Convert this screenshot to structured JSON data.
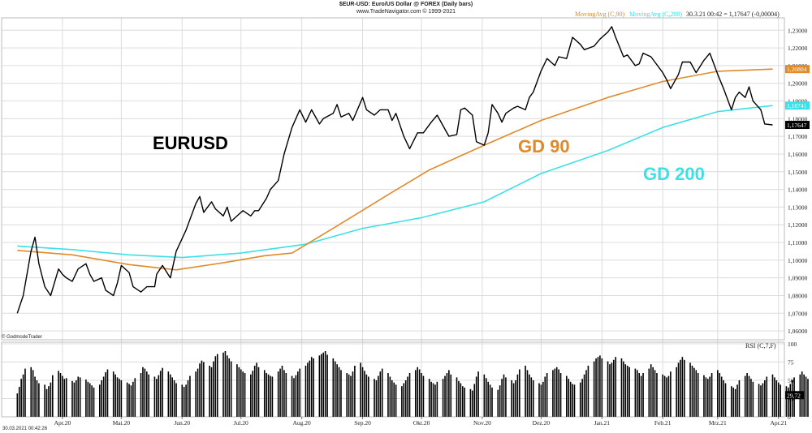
{
  "header": {
    "title": "$EUR-USD: Euro/US Dollar @ FOREX (Daily bars)",
    "copyright": "www.TradeNavigator.com © 1999-2021",
    "ma90_label": "MovingAvg (C,90)",
    "ma200_label": "MovingAvg (C,200)",
    "readout": "30.3.21 00:42 = 1,17647 (-0,00004)"
  },
  "annotations": {
    "eurusd": "EURUSD",
    "gd90": "GD 90",
    "gd200": "GD 200",
    "source": "© GodmodeTrader",
    "timestamp": "30.03.2021 00:42:26",
    "rsi_label": "RSI (C,7,F)"
  },
  "colors": {
    "price": "#000000",
    "ma90": "#e08a2a",
    "ma200": "#3de0e6",
    "grid": "#dcdcdc",
    "rsi_bars": "#000000"
  },
  "chart_data": [
    {
      "type": "line",
      "title": "$EUR-USD: Euro/US Dollar @ FOREX (Daily bars)",
      "ylim": [
        1.055,
        1.237
      ],
      "x_ticks": [
        "Apr.20",
        "Mai.20",
        "Jun.20",
        "Jul.20",
        "Aug.20",
        "Sep.20",
        "Okt.20",
        "Nov.20",
        "Dez.20",
        "Jan.21",
        "Feb.21",
        "Mrz.21",
        "Apr.21"
      ],
      "y_ticks": [
        "1,23000",
        "1,22000",
        "1,21000",
        "1,20000",
        "1,19000",
        "1,18000",
        "1,17000",
        "1,16000",
        "1,15000",
        "1,14000",
        "1,13000",
        "1,12000",
        "1,11000",
        "1,10000",
        "1,09000",
        "1,08000",
        "1,07000",
        "1,06000"
      ],
      "last_labels": {
        "ma90": "1,20804",
        "ma200": "1,18741",
        "price": "1,17647"
      },
      "series": [
        {
          "name": "EURUSD",
          "key": "price",
          "points": [
            [
              "2020-03-09",
              1.07
            ],
            [
              "2020-03-12",
              1.08
            ],
            [
              "2020-03-16",
              1.105
            ],
            [
              "2020-03-18",
              1.113
            ],
            [
              "2020-03-20",
              1.098
            ],
            [
              "2020-03-23",
              1.085
            ],
            [
              "2020-03-26",
              1.08
            ],
            [
              "2020-03-30",
              1.095
            ],
            [
              "2020-04-01",
              1.092
            ],
            [
              "2020-04-03",
              1.09
            ],
            [
              "2020-04-06",
              1.088
            ],
            [
              "2020-04-09",
              1.095
            ],
            [
              "2020-04-13",
              1.098
            ],
            [
              "2020-04-15",
              1.092
            ],
            [
              "2020-04-17",
              1.088
            ],
            [
              "2020-04-21",
              1.09
            ],
            [
              "2020-04-23",
              1.083
            ],
            [
              "2020-04-27",
              1.08
            ],
            [
              "2020-04-29",
              1.087
            ],
            [
              "2020-05-01",
              1.097
            ],
            [
              "2020-05-05",
              1.093
            ],
            [
              "2020-05-07",
              1.085
            ],
            [
              "2020-05-11",
              1.082
            ],
            [
              "2020-05-14",
              1.085
            ],
            [
              "2020-05-18",
              1.085
            ],
            [
              "2020-05-19",
              1.092
            ],
            [
              "2020-05-22",
              1.097
            ],
            [
              "2020-05-26",
              1.09
            ],
            [
              "2020-05-29",
              1.105
            ],
            [
              "2020-06-03",
              1.117
            ],
            [
              "2020-06-08",
              1.132
            ],
            [
              "2020-06-10",
              1.136
            ],
            [
              "2020-06-12",
              1.127
            ],
            [
              "2020-06-16",
              1.133
            ],
            [
              "2020-06-18",
              1.129
            ],
            [
              "2020-06-22",
              1.125
            ],
            [
              "2020-06-24",
              1.13
            ],
            [
              "2020-06-26",
              1.122
            ],
            [
              "2020-06-30",
              1.126
            ],
            [
              "2020-07-02",
              1.128
            ],
            [
              "2020-07-06",
              1.125
            ],
            [
              "2020-07-08",
              1.128
            ],
            [
              "2020-07-10",
              1.128
            ],
            [
              "2020-07-14",
              1.135
            ],
            [
              "2020-07-16",
              1.14
            ],
            [
              "2020-07-20",
              1.145
            ],
            [
              "2020-07-23",
              1.16
            ],
            [
              "2020-07-27",
              1.175
            ],
            [
              "2020-07-31",
              1.185
            ],
            [
              "2020-08-03",
              1.178
            ],
            [
              "2020-08-06",
              1.185
            ],
            [
              "2020-08-10",
              1.177
            ],
            [
              "2020-08-12",
              1.18
            ],
            [
              "2020-08-17",
              1.183
            ],
            [
              "2020-08-19",
              1.188
            ],
            [
              "2020-08-21",
              1.181
            ],
            [
              "2020-08-25",
              1.183
            ],
            [
              "2020-08-27",
              1.179
            ],
            [
              "2020-09-01",
              1.192
            ],
            [
              "2020-09-03",
              1.185
            ],
            [
              "2020-09-07",
              1.182
            ],
            [
              "2020-09-10",
              1.185
            ],
            [
              "2020-09-14",
              1.185
            ],
            [
              "2020-09-16",
              1.179
            ],
            [
              "2020-09-18",
              1.183
            ],
            [
              "2020-09-22",
              1.17
            ],
            [
              "2020-09-25",
              1.163
            ],
            [
              "2020-09-29",
              1.172
            ],
            [
              "2020-10-02",
              1.172
            ],
            [
              "2020-10-06",
              1.178
            ],
            [
              "2020-10-09",
              1.182
            ],
            [
              "2020-10-13",
              1.174
            ],
            [
              "2020-10-15",
              1.17
            ],
            [
              "2020-10-19",
              1.171
            ],
            [
              "2020-10-21",
              1.185
            ],
            [
              "2020-10-23",
              1.186
            ],
            [
              "2020-10-27",
              1.182
            ],
            [
              "2020-10-29",
              1.167
            ],
            [
              "2020-11-02",
              1.165
            ],
            [
              "2020-11-04",
              1.172
            ],
            [
              "2020-11-06",
              1.188
            ],
            [
              "2020-11-09",
              1.183
            ],
            [
              "2020-11-11",
              1.178
            ],
            [
              "2020-11-13",
              1.183
            ],
            [
              "2020-11-17",
              1.186
            ],
            [
              "2020-11-19",
              1.187
            ],
            [
              "2020-11-23",
              1.185
            ],
            [
              "2020-11-25",
              1.192
            ],
            [
              "2020-11-27",
              1.195
            ],
            [
              "2020-12-01",
              1.207
            ],
            [
              "2020-12-04",
              1.214
            ],
            [
              "2020-12-08",
              1.21
            ],
            [
              "2020-12-10",
              1.215
            ],
            [
              "2020-12-14",
              1.214
            ],
            [
              "2020-12-17",
              1.226
            ],
            [
              "2020-12-21",
              1.222
            ],
            [
              "2020-12-23",
              1.219
            ],
            [
              "2020-12-28",
              1.221
            ],
            [
              "2020-12-31",
              1.225
            ],
            [
              "2021-01-04",
              1.229
            ],
            [
              "2021-01-06",
              1.232
            ],
            [
              "2021-01-08",
              1.226
            ],
            [
              "2021-01-12",
              1.215
            ],
            [
              "2021-01-14",
              1.216
            ],
            [
              "2021-01-18",
              1.21
            ],
            [
              "2021-01-20",
              1.211
            ],
            [
              "2021-01-22",
              1.217
            ],
            [
              "2021-01-26",
              1.215
            ],
            [
              "2021-01-28",
              1.212
            ],
            [
              "2021-02-01",
              1.206
            ],
            [
              "2021-02-03",
              1.202
            ],
            [
              "2021-02-05",
              1.197
            ],
            [
              "2021-02-09",
              1.205
            ],
            [
              "2021-02-11",
              1.212
            ],
            [
              "2021-02-15",
              1.212
            ],
            [
              "2021-02-18",
              1.206
            ],
            [
              "2021-02-22",
              1.213
            ],
            [
              "2021-02-25",
              1.217
            ],
            [
              "2021-03-01",
              1.205
            ],
            [
              "2021-03-04",
              1.197
            ],
            [
              "2021-03-08",
              1.185
            ],
            [
              "2021-03-10",
              1.192
            ],
            [
              "2021-03-12",
              1.195
            ],
            [
              "2021-03-15",
              1.192
            ],
            [
              "2021-03-17",
              1.198
            ],
            [
              "2021-03-19",
              1.19
            ],
            [
              "2021-03-23",
              1.185
            ],
            [
              "2021-03-25",
              1.177
            ],
            [
              "2021-03-29",
              1.17647
            ]
          ]
        },
        {
          "name": "GD 90",
          "key": "ma90",
          "points": [
            [
              "2020-03-09",
              1.1055
            ],
            [
              "2020-04-06",
              1.103
            ],
            [
              "2020-05-05",
              1.0975
            ],
            [
              "2020-05-29",
              1.0945
            ],
            [
              "2020-06-22",
              1.0985
            ],
            [
              "2020-07-13",
              1.1025
            ],
            [
              "2020-07-27",
              1.104
            ],
            [
              "2020-08-17",
              1.118
            ],
            [
              "2020-09-14",
              1.137
            ],
            [
              "2020-10-05",
              1.151
            ],
            [
              "2020-11-02",
              1.165
            ],
            [
              "2020-12-01",
              1.179
            ],
            [
              "2021-01-04",
              1.192
            ],
            [
              "2021-02-01",
              1.201
            ],
            [
              "2021-03-01",
              1.2068
            ],
            [
              "2021-03-29",
              1.20804
            ]
          ]
        },
        {
          "name": "GD 200",
          "key": "ma200",
          "points": [
            [
              "2020-03-09",
              1.108
            ],
            [
              "2020-04-06",
              1.106
            ],
            [
              "2020-05-05",
              1.103
            ],
            [
              "2020-06-01",
              1.1015
            ],
            [
              "2020-07-01",
              1.104
            ],
            [
              "2020-08-03",
              1.109
            ],
            [
              "2020-09-01",
              1.118
            ],
            [
              "2020-10-01",
              1.124
            ],
            [
              "2020-11-02",
              1.133
            ],
            [
              "2020-12-01",
              1.149
            ],
            [
              "2021-01-04",
              1.162
            ],
            [
              "2021-02-01",
              1.175
            ],
            [
              "2021-03-01",
              1.184
            ],
            [
              "2021-03-29",
              1.18741
            ]
          ]
        }
      ]
    },
    {
      "type": "bar",
      "title": "RSI (C,7,F)",
      "ylim": [
        0,
        100
      ],
      "y_ticks": [
        "100",
        "75",
        "50",
        "25",
        "0"
      ],
      "last_label": "29,72",
      "series": [
        {
          "name": "RSI (C,7,F)",
          "start": "2020-03-09",
          "values": [
            32,
            41,
            52,
            58,
            66,
            68,
            64,
            55,
            50,
            46,
            44,
            38,
            42,
            47,
            57,
            63,
            60,
            56,
            52,
            53,
            49,
            47,
            50,
            55,
            54,
            51,
            48,
            46,
            43,
            40,
            44,
            50,
            55,
            61,
            65,
            62,
            58,
            54,
            52,
            50,
            47,
            45,
            43,
            48,
            53,
            60,
            68,
            66,
            62,
            58,
            55,
            52,
            57,
            63,
            67,
            62,
            58,
            54,
            50,
            46,
            44,
            41,
            44,
            50,
            56,
            62,
            66,
            73,
            77,
            75,
            70,
            68,
            76,
            83,
            86,
            88,
            90,
            84,
            80,
            76,
            72,
            68,
            65,
            62,
            60,
            58,
            63,
            70,
            74,
            68,
            64,
            60,
            58,
            56,
            55,
            62,
            66,
            70,
            64,
            60,
            56,
            53,
            57,
            62,
            66,
            70,
            74,
            77,
            82,
            80,
            84,
            86,
            88,
            90,
            85,
            80,
            76,
            72,
            68,
            64,
            60,
            58,
            56,
            62,
            70,
            74,
            68,
            63,
            58,
            55,
            52,
            50,
            56,
            62,
            66,
            60,
            55,
            50,
            47,
            44,
            42,
            46,
            50,
            55,
            60,
            64,
            68,
            65,
            60,
            56,
            52,
            48,
            46,
            44,
            48,
            52,
            56,
            60,
            64,
            58,
            54,
            49,
            46,
            42,
            40,
            38,
            36,
            45,
            55,
            62,
            58,
            53,
            48,
            44,
            40,
            37,
            43,
            52,
            58,
            54,
            50,
            46,
            50,
            58,
            65,
            70,
            64,
            58,
            54,
            50,
            46,
            44,
            48,
            55,
            60,
            64,
            66,
            68,
            65,
            60,
            56,
            52,
            48,
            45,
            44,
            47,
            52,
            58,
            64,
            70,
            76,
            80,
            82,
            84,
            80,
            76,
            72,
            74,
            78,
            82,
            80,
            76,
            72,
            70,
            68,
            66,
            64,
            60,
            56,
            60,
            66,
            72,
            68,
            64,
            60,
            58,
            56,
            54,
            56,
            62,
            68,
            74,
            78,
            82,
            78,
            74,
            70,
            67,
            64,
            60,
            57,
            54,
            52,
            55,
            60,
            64,
            60,
            55,
            50,
            46,
            42,
            40,
            38,
            44,
            50,
            56,
            60,
            56,
            52,
            48,
            45,
            43,
            46,
            50,
            55,
            58,
            54,
            50,
            47,
            44,
            42,
            40,
            45,
            50,
            54,
            58,
            62,
            58,
            55,
            52,
            50,
            48,
            46,
            44,
            42,
            40,
            44,
            50,
            56,
            60,
            64,
            60,
            56,
            52,
            48,
            45,
            42,
            38,
            34,
            30,
            35,
            42,
            48,
            52,
            50,
            46,
            42,
            38,
            34,
            30,
            32,
            30
          ]
        }
      ]
    }
  ]
}
